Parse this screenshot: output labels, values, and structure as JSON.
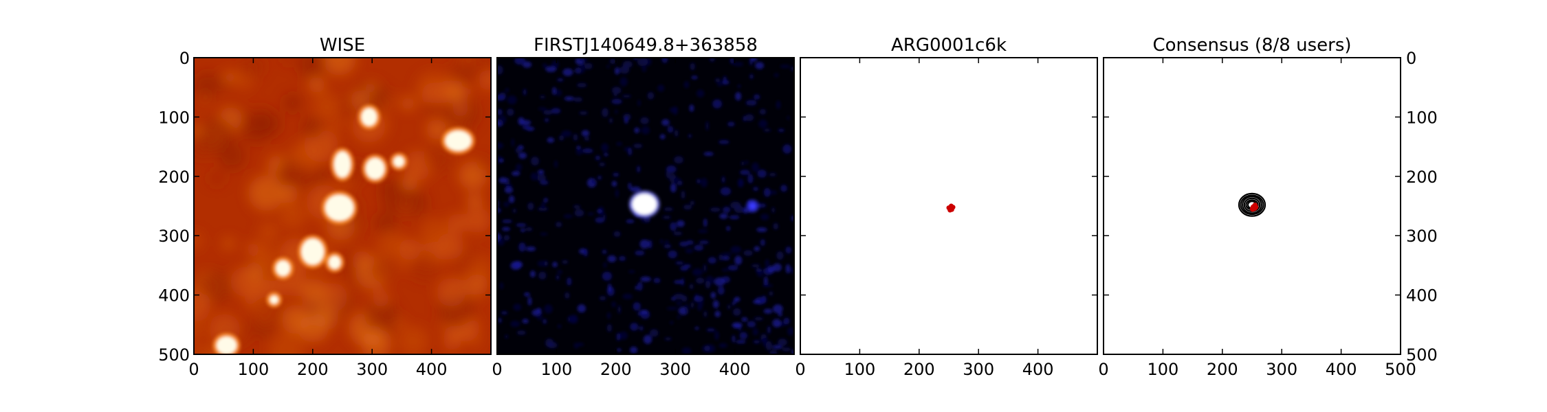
{
  "chart_data": [
    {
      "type": "heatmap",
      "title": "WISE",
      "colormap": "gist_heat",
      "xlim": [
        0,
        500
      ],
      "ylim": [
        500,
        0
      ],
      "x_ticks": [
        "0",
        "100",
        "200",
        "300",
        "400"
      ],
      "y_ticks": [
        "0",
        "100",
        "200",
        "300",
        "400",
        "500"
      ],
      "sources": [
        {
          "x": 445,
          "y": 140,
          "rx": 22,
          "ry": 17
        },
        {
          "x": 295,
          "y": 100,
          "rx": 13,
          "ry": 15
        },
        {
          "x": 250,
          "y": 180,
          "rx": 14,
          "ry": 22
        },
        {
          "x": 305,
          "y": 187,
          "rx": 16,
          "ry": 18
        },
        {
          "x": 345,
          "y": 175,
          "rx": 9,
          "ry": 9
        },
        {
          "x": 245,
          "y": 253,
          "rx": 24,
          "ry": 22
        },
        {
          "x": 200,
          "y": 327,
          "rx": 19,
          "ry": 22
        },
        {
          "x": 237,
          "y": 345,
          "rx": 10,
          "ry": 11
        },
        {
          "x": 150,
          "y": 355,
          "rx": 12,
          "ry": 13
        },
        {
          "x": 55,
          "y": 485,
          "rx": 17,
          "ry": 15
        },
        {
          "x": 135,
          "y": 408,
          "rx": 7,
          "ry": 7
        }
      ]
    },
    {
      "type": "heatmap",
      "title": "FIRSTJ140649.8+363858",
      "colormap": "gist_heat_blue",
      "xlim": [
        0,
        500
      ],
      "ylim": [
        500,
        0
      ],
      "x_ticks": [
        "0",
        "100",
        "200",
        "300",
        "400"
      ],
      "sources": [
        {
          "x": 248,
          "y": 247,
          "rx": 21,
          "ry": 18
        },
        {
          "x": 430,
          "y": 250,
          "rx": 6,
          "ry": 6
        }
      ]
    },
    {
      "type": "scatter",
      "title": "ARG0001c6k",
      "xlim": [
        0,
        500
      ],
      "ylim": [
        500,
        0
      ],
      "x_ticks": [
        "0",
        "100",
        "200",
        "300",
        "400"
      ],
      "points": [
        {
          "x": 250,
          "y": 253
        },
        {
          "x": 253,
          "y": 254
        },
        {
          "x": 255,
          "y": 256
        },
        {
          "x": 252,
          "y": 257
        },
        {
          "x": 257,
          "y": 252
        },
        {
          "x": 254,
          "y": 250
        }
      ],
      "point_color": "#cc0000"
    },
    {
      "type": "scatter",
      "title": "Consensus (8/8 users)",
      "xlim": [
        0,
        500
      ],
      "ylim": [
        500,
        0
      ],
      "x_ticks": [
        "0",
        "100",
        "200",
        "300",
        "400",
        "500"
      ],
      "y_ticks": [
        "0",
        "100",
        "200",
        "300",
        "400",
        "500"
      ],
      "contour_center": {
        "x": 250,
        "y": 248
      },
      "contours": [
        {
          "rx": 22,
          "ry": 19
        },
        {
          "rx": 19,
          "ry": 16
        },
        {
          "rx": 16,
          "ry": 14
        },
        {
          "rx": 13,
          "ry": 11
        },
        {
          "rx": 10,
          "ry": 8
        },
        {
          "rx": 7,
          "ry": 6
        }
      ],
      "points": [
        {
          "x": 252,
          "y": 252
        },
        {
          "x": 254,
          "y": 254
        },
        {
          "x": 256,
          "y": 252
        },
        {
          "x": 251,
          "y": 255
        },
        {
          "x": 255,
          "y": 249
        }
      ],
      "point_color": "#cc0000"
    }
  ]
}
